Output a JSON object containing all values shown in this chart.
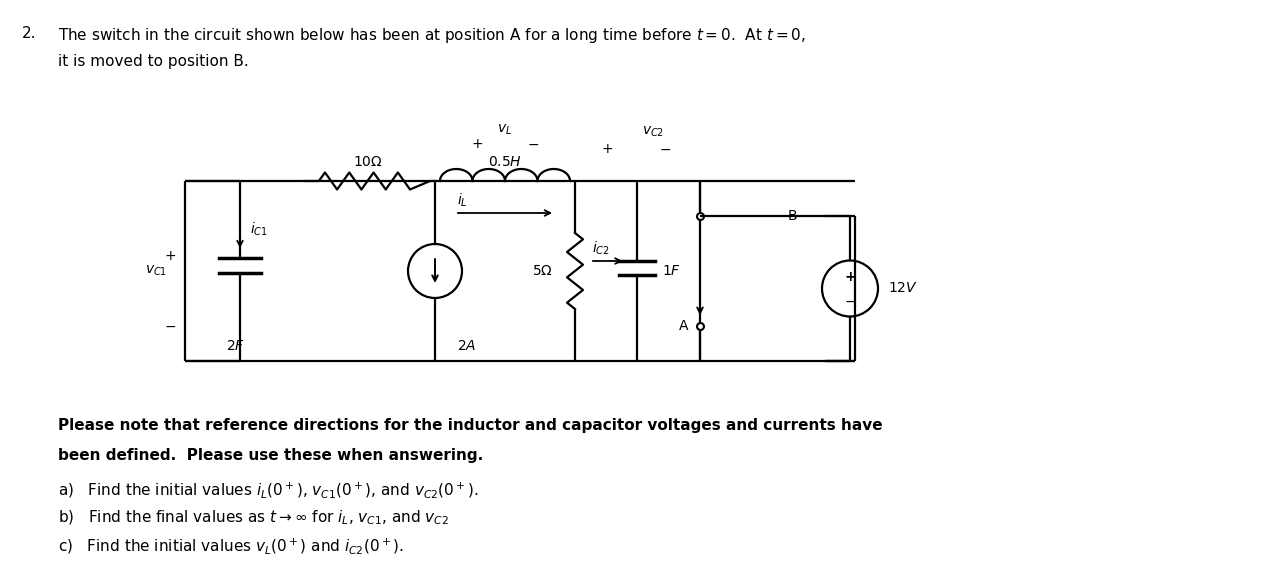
{
  "bg_color": "#ffffff",
  "fig_width": 12.84,
  "fig_height": 5.66,
  "intro_text_line1": "The switch in the circuit shown below has been at position A for a long time before $t = 0$.  At $t = 0$,",
  "intro_text_line2": "it is moved to position B.",
  "note_bold_line1": "Please note that reference directions for the inductor and capacitor voltages and currents have",
  "note_bold_line2": "been defined.  Please use these when answering.",
  "qa": "a)   Find the initial values $i_L(0^+)$, $v_{C1}(0^+)$, and $v_{C2}(0^+)$.",
  "qb": "b)   Find the final values as $t \\rightarrow \\infty$ for $i_L$, $v_{C1}$, and $v_{C2}$",
  "qc": "c)   Find the initial values $v_L(0^+)$ and $i_{C2}(0^+)$."
}
